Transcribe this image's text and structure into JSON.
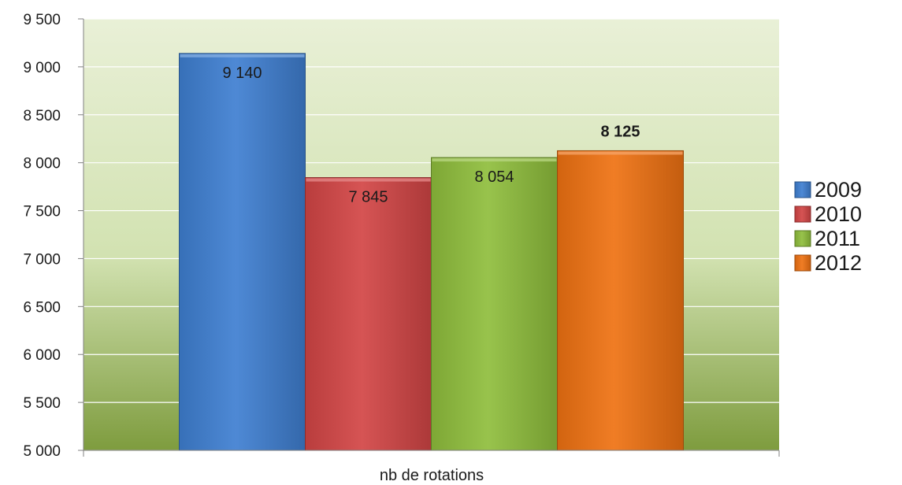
{
  "chart_data": {
    "type": "bar",
    "categories": [
      "nb de rotations"
    ],
    "xlabel": "nb de rotations",
    "ylim": [
      5000,
      9500
    ],
    "yticks": [
      5000,
      5500,
      6000,
      6500,
      7000,
      7500,
      8000,
      8500,
      9000,
      9500
    ],
    "ytick_labels": [
      "5 000",
      "5 500",
      "6 000",
      "6 500",
      "7 000",
      "7 500",
      "8 000",
      "8 500",
      "9 000",
      "9 500"
    ],
    "grid": true,
    "legend_position": "right",
    "series": [
      {
        "name": "2009",
        "values": [
          9140
        ],
        "label": "9 140",
        "bold": false,
        "color": "#3f7fd1"
      },
      {
        "name": "2010",
        "values": [
          7845
        ],
        "label": "7 845",
        "bold": false,
        "color": "#d24545"
      },
      {
        "name": "2011",
        "values": [
          8054
        ],
        "label": "8 054",
        "bold": false,
        "color": "#8fbe3c"
      },
      {
        "name": "2012",
        "values": [
          8125
        ],
        "label": "8 125",
        "bold": true,
        "color": "#ef7212"
      }
    ]
  }
}
